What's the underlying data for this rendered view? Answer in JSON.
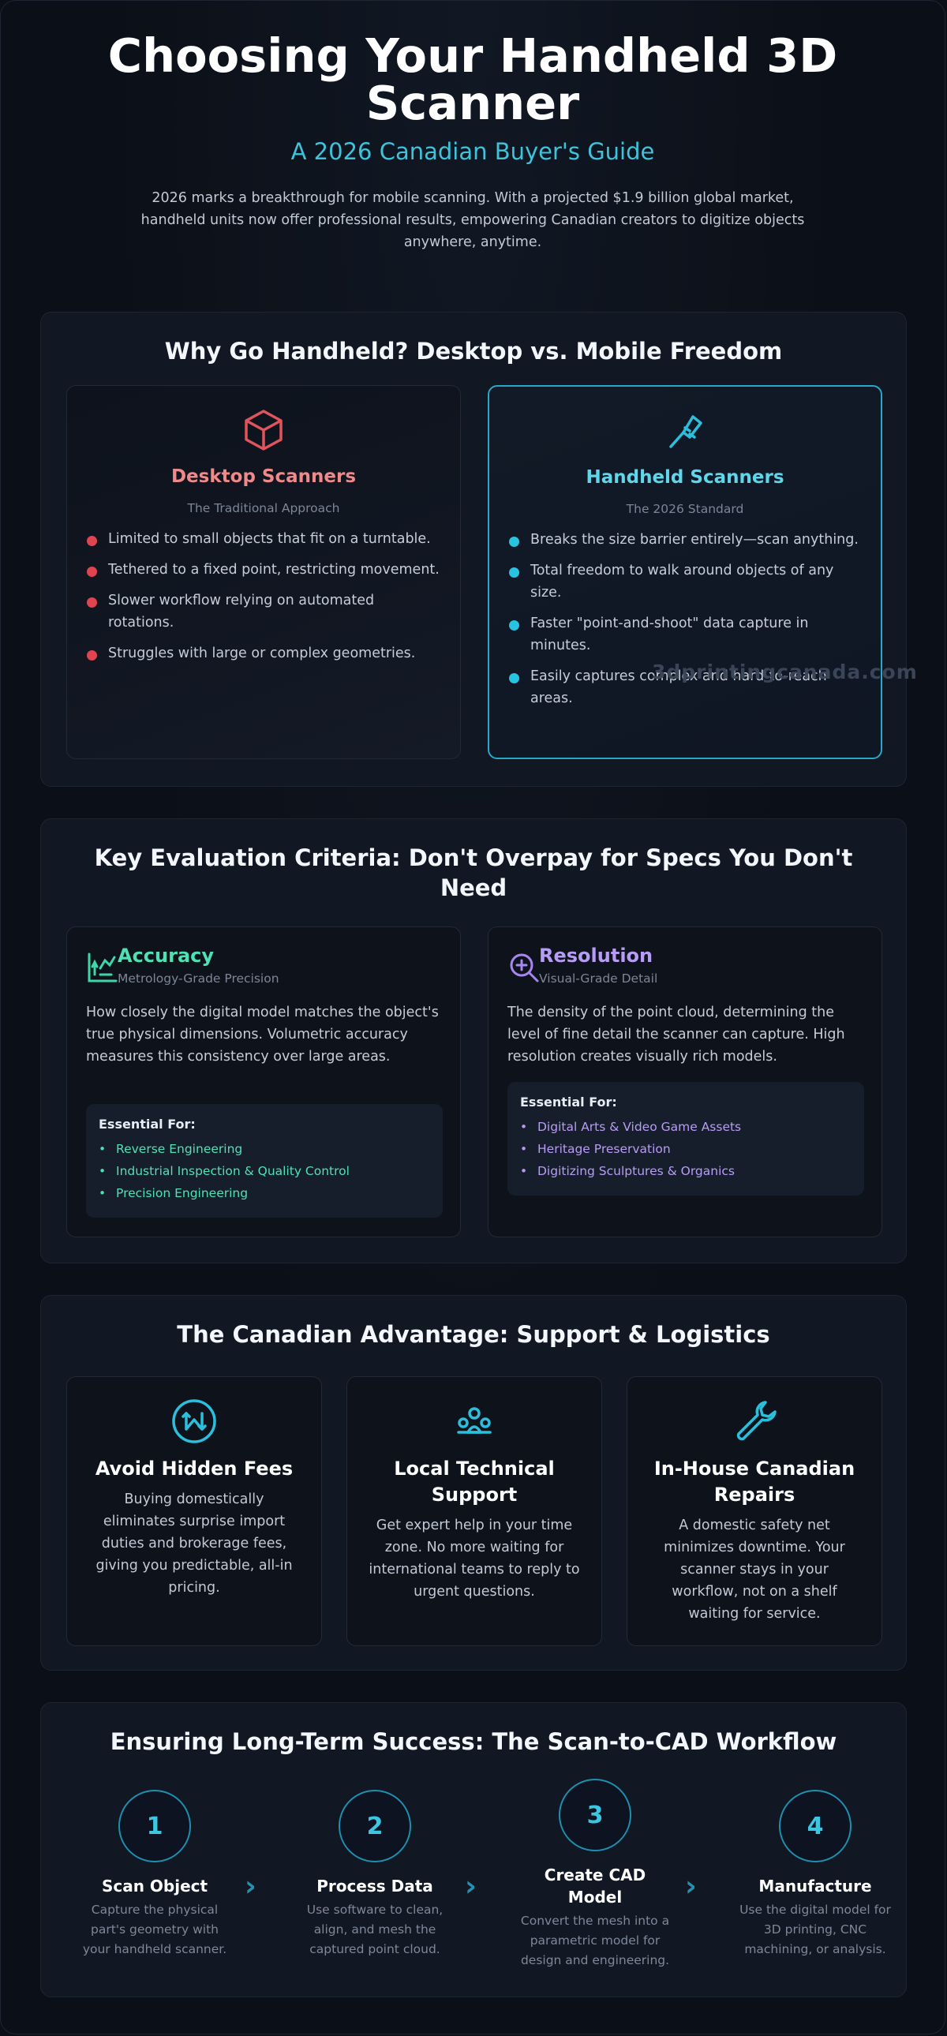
{
  "hero": {
    "title": "Choosing Your Handheld 3D Scanner",
    "subtitle": "A 2026 Canadian Buyer's Guide",
    "intro": "2026 marks a breakthrough for mobile scanning. With a projected $1.9 billion global market, handheld units now offer professional results, empowering Canadian creators to digitize objects anywhere, anytime."
  },
  "comparison": {
    "title": "Why Go Handheld? Desktop vs. Mobile Freedom",
    "desktop": {
      "icon": "cube-icon",
      "title": "Desktop Scanners",
      "tagline": "The Traditional Approach",
      "points": [
        "Limited to small objects that fit on a turntable.",
        "Tethered to a fixed point, restricting movement.",
        "Slower workflow relying on automated rotations.",
        "Struggles with large or complex geometries."
      ]
    },
    "handheld": {
      "icon": "scanner-icon",
      "title": "Handheld Scanners",
      "tagline": "The 2026 Standard",
      "points": [
        "Breaks the size barrier entirely—scan anything.",
        "Total freedom to walk around objects of any size.",
        "Faster \"point-and-shoot\" data capture in minutes.",
        "Easily captures complex and hard-to-reach areas."
      ]
    },
    "watermark": "3dprintingcanada.com"
  },
  "criteria": {
    "title": "Key Evaluation Criteria: Don't Overpay for Specs You Don't Need",
    "accuracy": {
      "icon": "chart-icon",
      "title": "Accuracy",
      "subtitle": "Metrology-Grade Precision",
      "description": "How closely the digital model matches the object's true physical dimensions. Volumetric accuracy measures this consistency over large areas.",
      "essential_label": "Essential For:",
      "essential": [
        "Reverse Engineering",
        "Industrial Inspection & Quality Control",
        "Precision Engineering"
      ]
    },
    "resolution": {
      "icon": "zoom-in-icon",
      "title": "Resolution",
      "subtitle": "Visual-Grade Detail",
      "description": "The density of the point cloud, determining the level of fine detail the scanner can capture. High resolution creates visually rich models.",
      "essential_label": "Essential For:",
      "essential": [
        "Digital Arts & Video Game Assets",
        "Heritage Preservation",
        "Digitizing Sculptures & Organics"
      ]
    }
  },
  "advantage": {
    "title": "The Canadian Advantage: Support & Logistics",
    "items": [
      {
        "icon": "no-fees-icon",
        "title": "Avoid Hidden Fees",
        "text": "Buying domestically eliminates surprise import duties and brokerage fees, giving you predictable, all-in pricing."
      },
      {
        "icon": "support-team-icon",
        "title": "Local Technical Support",
        "text": "Get expert help in your time zone. No more waiting for international teams to reply to urgent questions."
      },
      {
        "icon": "wrench-icon",
        "title": "In-House Canadian Repairs",
        "text": "A domestic safety net minimizes downtime. Your scanner stays in your workflow, not on a shelf waiting for service."
      }
    ]
  },
  "workflow": {
    "title": "Ensuring Long-Term Success: The Scan-to-CAD Workflow",
    "steps": [
      {
        "num": "1",
        "name": "Scan Object",
        "text": "Capture the physical part's geometry with your handheld scanner."
      },
      {
        "num": "2",
        "name": "Process Data",
        "text": "Use software to clean, align, and mesh the captured point cloud."
      },
      {
        "num": "3",
        "name": "Create CAD Model",
        "text": "Convert the mesh into a parametric model for design and engineering."
      },
      {
        "num": "4",
        "name": "Manufacture",
        "text": "Use the digital model for 3D printing, CNC machining, or analysis."
      }
    ],
    "separator": "›"
  }
}
